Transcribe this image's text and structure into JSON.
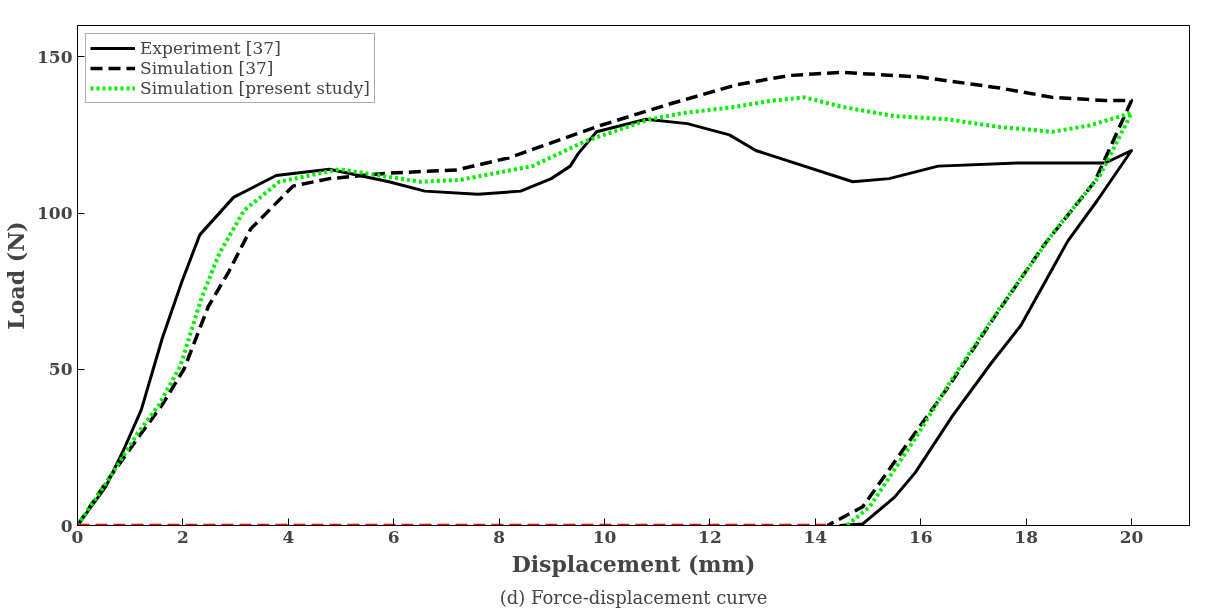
{
  "chart_data": {
    "type": "line",
    "xlabel": "Displacement (mm)",
    "ylabel": "Load (N)",
    "annotations": [
      "(d) Force-displacement curve"
    ],
    "xlim": [
      0,
      21.1
    ],
    "ylim": [
      0,
      160
    ],
    "xticks": [
      0,
      2,
      4,
      6,
      8,
      10,
      12,
      14,
      16,
      18,
      20
    ],
    "yticks": [
      0,
      50,
      100,
      150
    ],
    "grid": false,
    "legend": "top left",
    "series": [
      {
        "name": "Experiment [37]",
        "color": "#000000",
        "line_style": "solid",
        "x": [
          0,
          0.54,
          0.87,
          1.21,
          1.61,
          1.98,
          2.32,
          2.96,
          3.77,
          4.78,
          5.91,
          6.59,
          7.6,
          8.41,
          8.99,
          9.35,
          9.5,
          9.85,
          10.79,
          11.57,
          12.37,
          12.87,
          14.71,
          15.4,
          16.33,
          17.84,
          19.5,
          20,
          19.35,
          18.79,
          17.9,
          17.34,
          16.6,
          15.9,
          15.5,
          14.9,
          14.46
        ],
        "values": [
          0,
          12.5,
          24,
          37,
          60,
          78,
          93,
          105,
          112,
          114,
          110,
          107,
          106,
          107,
          111,
          115,
          119,
          126,
          130,
          128.6,
          125,
          120,
          110,
          111,
          115,
          116,
          116,
          120,
          104,
          91,
          64,
          52,
          35,
          17,
          9,
          0.5,
          0
        ]
      },
      {
        "name": "Simulation [37]",
        "color": "#000000",
        "line_style": "dashed",
        "x": [
          0,
          0.54,
          1.21,
          1.61,
          2.02,
          2.48,
          2.88,
          3.29,
          4.09,
          4.78,
          5.85,
          7.2,
          8.19,
          9.92,
          11.2,
          12.5,
          13.5,
          14.5,
          16,
          17.5,
          18.5,
          19.5,
          20,
          19.3,
          18.35,
          17.41,
          16.55,
          15.74,
          14.9,
          14.23
        ],
        "values": [
          0,
          13.7,
          29.5,
          38.7,
          50,
          70,
          81.5,
          95,
          108.6,
          111,
          112.7,
          113.8,
          117.7,
          128,
          134.7,
          141,
          144,
          145,
          143.5,
          140,
          137,
          136,
          136,
          110,
          90,
          67,
          45,
          26,
          6,
          0
        ]
      },
      {
        "name": "Simulation [present study]",
        "color": "#00ee00",
        "line_style": "dotted",
        "x": [
          0,
          0.6,
          1.14,
          1.55,
          1.95,
          2.35,
          2.69,
          3.16,
          3.83,
          4.97,
          6.51,
          7.26,
          8.63,
          9.64,
          10.86,
          11.5,
          12.5,
          13.2,
          13.8,
          14.5,
          15.5,
          16.5,
          17.5,
          18.5,
          19.2,
          20,
          19.4,
          18.53,
          17.48,
          16.6,
          15.9,
          15.03,
          14.6
        ],
        "values": [
          0,
          15,
          29.5,
          38.7,
          51,
          72.6,
          87,
          100.8,
          110,
          114,
          110,
          110.6,
          115,
          123,
          130,
          132,
          134,
          136,
          137,
          134,
          131,
          130,
          127.5,
          126,
          128,
          132,
          112,
          94,
          69,
          47,
          28,
          6,
          0
        ]
      },
      {
        "color": "#ff0000",
        "line_style": "dashed",
        "x": [
          0,
          14.2
        ],
        "values": [
          0,
          0
        ]
      }
    ]
  }
}
